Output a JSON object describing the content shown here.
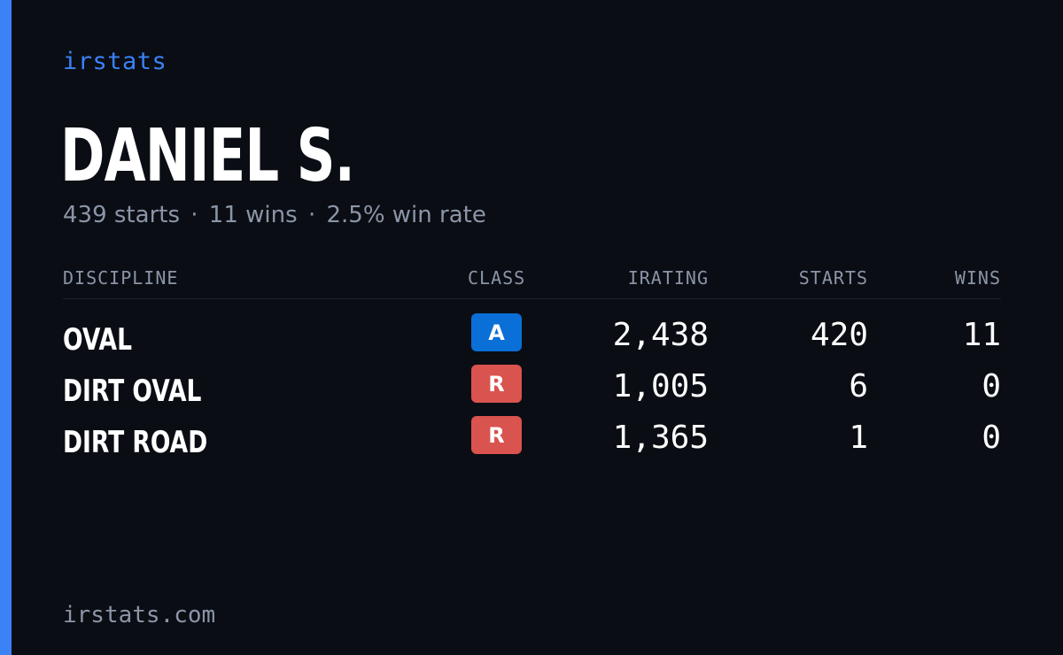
{
  "brand": "irstats",
  "driver": {
    "name": "DANIEL S.",
    "summary": {
      "starts": "439 starts",
      "wins": "11 wins",
      "win_rate": "2.5% win rate",
      "separator": "·"
    }
  },
  "table": {
    "headers": {
      "discipline": "DISCIPLINE",
      "class": "CLASS",
      "irating": "IRATING",
      "starts": "STARTS",
      "wins": "WINS"
    },
    "rows": [
      {
        "discipline": "OVAL",
        "class": "A",
        "class_color": "#0a6fd6",
        "irating": "2,438",
        "starts": "420",
        "wins": "11"
      },
      {
        "discipline": "DIRT OVAL",
        "class": "R",
        "class_color": "#d9534f",
        "irating": "1,005",
        "starts": "6",
        "wins": "0"
      },
      {
        "discipline": "DIRT ROAD",
        "class": "R",
        "class_color": "#d9534f",
        "irating": "1,365",
        "starts": "1",
        "wins": "0"
      }
    ]
  },
  "footer": "irstats.com",
  "colors": {
    "accent": "#3b82f6",
    "background": "#0a0d14",
    "muted_text": "#8b95a7"
  }
}
